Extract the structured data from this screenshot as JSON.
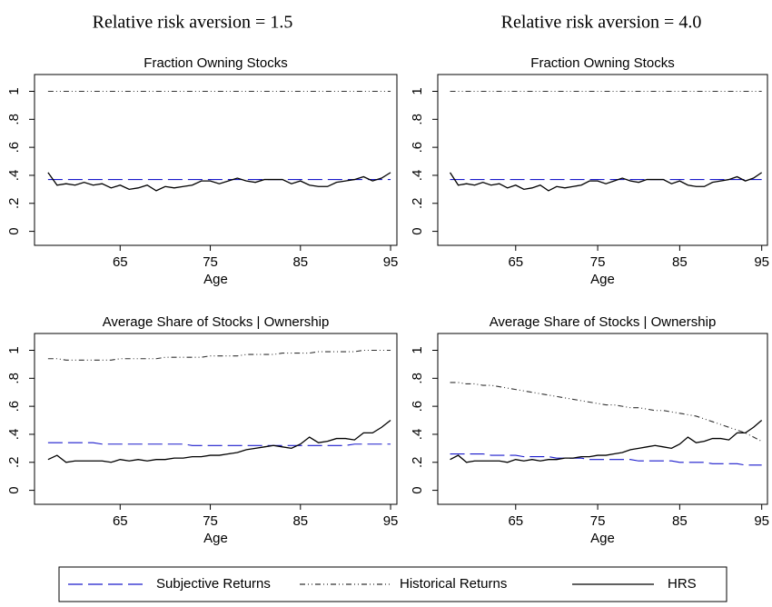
{
  "column_titles": [
    "Relative risk aversion = 1.5",
    "Relative risk aversion = 4.0"
  ],
  "chart_data": [
    {
      "type": "line",
      "title": "Fraction Owning Stocks",
      "x_label": "Age",
      "x": [
        57,
        58,
        59,
        60,
        61,
        62,
        63,
        64,
        65,
        66,
        67,
        68,
        69,
        70,
        71,
        72,
        73,
        74,
        75,
        76,
        77,
        78,
        79,
        80,
        81,
        82,
        83,
        84,
        85,
        86,
        87,
        88,
        89,
        90,
        91,
        92,
        93,
        94,
        95
      ],
      "series": [
        {
          "name": "Subjective Returns",
          "color": "#1a1acc",
          "dash": "dashed",
          "values": [
            0.37,
            0.37,
            0.37,
            0.37,
            0.37,
            0.37,
            0.37,
            0.37,
            0.37,
            0.37,
            0.37,
            0.37,
            0.37,
            0.37,
            0.37,
            0.37,
            0.37,
            0.37,
            0.37,
            0.37,
            0.37,
            0.37,
            0.37,
            0.37,
            0.37,
            0.37,
            0.37,
            0.37,
            0.37,
            0.37,
            0.37,
            0.37,
            0.37,
            0.37,
            0.37,
            0.37,
            0.37,
            0.37,
            0.37
          ]
        },
        {
          "name": "Historical Returns",
          "color": "#333333",
          "dash": "dashdot",
          "values": [
            1,
            1,
            1,
            1,
            1,
            1,
            1,
            1,
            1,
            1,
            1,
            1,
            1,
            1,
            1,
            1,
            1,
            1,
            1,
            1,
            1,
            1,
            1,
            1,
            1,
            1,
            1,
            1,
            1,
            1,
            1,
            1,
            1,
            1,
            1,
            1,
            1,
            1,
            1
          ]
        },
        {
          "name": "HRS",
          "color": "#000000",
          "dash": "solid",
          "values": [
            0.42,
            0.33,
            0.34,
            0.33,
            0.35,
            0.33,
            0.34,
            0.31,
            0.33,
            0.3,
            0.31,
            0.33,
            0.29,
            0.32,
            0.31,
            0.32,
            0.33,
            0.36,
            0.36,
            0.34,
            0.36,
            0.38,
            0.36,
            0.35,
            0.37,
            0.37,
            0.37,
            0.34,
            0.36,
            0.33,
            0.32,
            0.32,
            0.35,
            0.36,
            0.37,
            0.39,
            0.36,
            0.38,
            0.42
          ]
        }
      ],
      "xlim": [
        55.5,
        95.7
      ],
      "ylim": [
        -0.1,
        1.12
      ],
      "xticks": [
        65,
        75,
        85,
        95
      ],
      "yticks": [
        0,
        {
          "value": 0.2,
          "label": ".2"
        },
        {
          "value": 0.4,
          "label": ".4"
        },
        {
          "value": 0.6,
          "label": ".6"
        },
        {
          "value": 0.8,
          "label": ".8"
        },
        1
      ]
    },
    {
      "type": "line",
      "title": "Fraction Owning Stocks",
      "x_label": "Age",
      "x": [
        57,
        58,
        59,
        60,
        61,
        62,
        63,
        64,
        65,
        66,
        67,
        68,
        69,
        70,
        71,
        72,
        73,
        74,
        75,
        76,
        77,
        78,
        79,
        80,
        81,
        82,
        83,
        84,
        85,
        86,
        87,
        88,
        89,
        90,
        91,
        92,
        93,
        94,
        95
      ],
      "series": [
        {
          "name": "Subjective Returns",
          "color": "#1a1acc",
          "dash": "dashed",
          "values": [
            0.37,
            0.37,
            0.37,
            0.37,
            0.37,
            0.37,
            0.37,
            0.37,
            0.37,
            0.37,
            0.37,
            0.37,
            0.37,
            0.37,
            0.37,
            0.37,
            0.37,
            0.37,
            0.37,
            0.37,
            0.37,
            0.37,
            0.37,
            0.37,
            0.37,
            0.37,
            0.37,
            0.37,
            0.37,
            0.37,
            0.37,
            0.37,
            0.37,
            0.37,
            0.37,
            0.37,
            0.37,
            0.37,
            0.37
          ]
        },
        {
          "name": "Historical Returns",
          "color": "#333333",
          "dash": "dashdot",
          "values": [
            1,
            1,
            1,
            1,
            1,
            1,
            1,
            1,
            1,
            1,
            1,
            1,
            1,
            1,
            1,
            1,
            1,
            1,
            1,
            1,
            1,
            1,
            1,
            1,
            1,
            1,
            1,
            1,
            1,
            1,
            1,
            1,
            1,
            1,
            1,
            1,
            1,
            1,
            1
          ]
        },
        {
          "name": "HRS",
          "color": "#000000",
          "dash": "solid",
          "values": [
            0.42,
            0.33,
            0.34,
            0.33,
            0.35,
            0.33,
            0.34,
            0.31,
            0.33,
            0.3,
            0.31,
            0.33,
            0.29,
            0.32,
            0.31,
            0.32,
            0.33,
            0.36,
            0.36,
            0.34,
            0.36,
            0.38,
            0.36,
            0.35,
            0.37,
            0.37,
            0.37,
            0.34,
            0.36,
            0.33,
            0.32,
            0.32,
            0.35,
            0.36,
            0.37,
            0.39,
            0.36,
            0.38,
            0.42
          ]
        }
      ],
      "xlim": [
        55.5,
        95.7
      ],
      "ylim": [
        -0.1,
        1.12
      ],
      "xticks": [
        65,
        75,
        85,
        95
      ],
      "yticks": [
        0,
        {
          "value": 0.2,
          "label": ".2"
        },
        {
          "value": 0.4,
          "label": ".4"
        },
        {
          "value": 0.6,
          "label": ".6"
        },
        {
          "value": 0.8,
          "label": ".8"
        },
        1
      ]
    },
    {
      "type": "line",
      "title": "Average Share of Stocks | Ownership",
      "x_label": "Age",
      "x": [
        57,
        58,
        59,
        60,
        61,
        62,
        63,
        64,
        65,
        66,
        67,
        68,
        69,
        70,
        71,
        72,
        73,
        74,
        75,
        76,
        77,
        78,
        79,
        80,
        81,
        82,
        83,
        84,
        85,
        86,
        87,
        88,
        89,
        90,
        91,
        92,
        93,
        94,
        95
      ],
      "series": [
        {
          "name": "Subjective Returns",
          "color": "#1a1acc",
          "dash": "dashed",
          "values": [
            0.34,
            0.34,
            0.34,
            0.34,
            0.34,
            0.34,
            0.33,
            0.33,
            0.33,
            0.33,
            0.33,
            0.33,
            0.33,
            0.33,
            0.33,
            0.33,
            0.32,
            0.32,
            0.32,
            0.32,
            0.32,
            0.32,
            0.32,
            0.32,
            0.32,
            0.32,
            0.32,
            0.32,
            0.32,
            0.32,
            0.32,
            0.32,
            0.32,
            0.32,
            0.33,
            0.33,
            0.33,
            0.33,
            0.33
          ]
        },
        {
          "name": "Historical Returns",
          "color": "#333333",
          "dash": "dashdot",
          "values": [
            0.94,
            0.94,
            0.93,
            0.93,
            0.93,
            0.93,
            0.93,
            0.93,
            0.94,
            0.94,
            0.94,
            0.94,
            0.94,
            0.95,
            0.95,
            0.95,
            0.95,
            0.95,
            0.96,
            0.96,
            0.96,
            0.96,
            0.97,
            0.97,
            0.97,
            0.97,
            0.98,
            0.98,
            0.98,
            0.98,
            0.99,
            0.99,
            0.99,
            0.99,
            0.99,
            1,
            1,
            1,
            1
          ]
        },
        {
          "name": "HRS",
          "color": "#000000",
          "dash": "solid",
          "values": [
            0.22,
            0.25,
            0.2,
            0.21,
            0.21,
            0.21,
            0.21,
            0.2,
            0.22,
            0.21,
            0.22,
            0.21,
            0.22,
            0.22,
            0.23,
            0.23,
            0.24,
            0.24,
            0.25,
            0.25,
            0.26,
            0.27,
            0.29,
            0.3,
            0.31,
            0.32,
            0.31,
            0.3,
            0.33,
            0.38,
            0.34,
            0.35,
            0.37,
            0.37,
            0.36,
            0.41,
            0.41,
            0.45,
            0.5
          ]
        }
      ],
      "xlim": [
        55.5,
        95.7
      ],
      "ylim": [
        -0.1,
        1.12
      ],
      "xticks": [
        65,
        75,
        85,
        95
      ],
      "yticks": [
        0,
        {
          "value": 0.2,
          "label": ".2"
        },
        {
          "value": 0.4,
          "label": ".4"
        },
        {
          "value": 0.6,
          "label": ".6"
        },
        {
          "value": 0.8,
          "label": ".8"
        },
        1
      ]
    },
    {
      "type": "line",
      "title": "Average Share of Stocks | Ownership",
      "x_label": "Age",
      "x": [
        57,
        58,
        59,
        60,
        61,
        62,
        63,
        64,
        65,
        66,
        67,
        68,
        69,
        70,
        71,
        72,
        73,
        74,
        75,
        76,
        77,
        78,
        79,
        80,
        81,
        82,
        83,
        84,
        85,
        86,
        87,
        88,
        89,
        90,
        91,
        92,
        93,
        94,
        95
      ],
      "series": [
        {
          "name": "Subjective Returns",
          "color": "#1a1acc",
          "dash": "dashed",
          "values": [
            0.26,
            0.26,
            0.26,
            0.26,
            0.26,
            0.25,
            0.25,
            0.25,
            0.25,
            0.24,
            0.24,
            0.24,
            0.24,
            0.23,
            0.23,
            0.23,
            0.23,
            0.22,
            0.22,
            0.22,
            0.22,
            0.22,
            0.22,
            0.21,
            0.21,
            0.21,
            0.21,
            0.21,
            0.2,
            0.2,
            0.2,
            0.2,
            0.19,
            0.19,
            0.19,
            0.19,
            0.18,
            0.18,
            0.18
          ]
        },
        {
          "name": "Historical Returns",
          "color": "#333333",
          "dash": "dashdot",
          "values": [
            0.77,
            0.77,
            0.76,
            0.76,
            0.75,
            0.75,
            0.74,
            0.73,
            0.72,
            0.71,
            0.7,
            0.69,
            0.68,
            0.67,
            0.66,
            0.65,
            0.64,
            0.63,
            0.62,
            0.61,
            0.61,
            0.6,
            0.59,
            0.59,
            0.58,
            0.57,
            0.57,
            0.56,
            0.55,
            0.54,
            0.53,
            0.51,
            0.49,
            0.47,
            0.45,
            0.43,
            0.41,
            0.38,
            0.35
          ]
        },
        {
          "name": "HRS",
          "color": "#000000",
          "dash": "solid",
          "values": [
            0.22,
            0.25,
            0.2,
            0.21,
            0.21,
            0.21,
            0.21,
            0.2,
            0.22,
            0.21,
            0.22,
            0.21,
            0.22,
            0.22,
            0.23,
            0.23,
            0.24,
            0.24,
            0.25,
            0.25,
            0.26,
            0.27,
            0.29,
            0.3,
            0.31,
            0.32,
            0.31,
            0.3,
            0.33,
            0.38,
            0.34,
            0.35,
            0.37,
            0.37,
            0.36,
            0.41,
            0.41,
            0.45,
            0.5
          ]
        }
      ],
      "xlim": [
        55.5,
        95.7
      ],
      "ylim": [
        -0.1,
        1.12
      ],
      "xticks": [
        65,
        75,
        85,
        95
      ],
      "yticks": [
        0,
        {
          "value": 0.2,
          "label": ".2"
        },
        {
          "value": 0.4,
          "label": ".4"
        },
        {
          "value": 0.6,
          "label": ".6"
        },
        {
          "value": 0.8,
          "label": ".8"
        },
        1
      ]
    }
  ]
}
